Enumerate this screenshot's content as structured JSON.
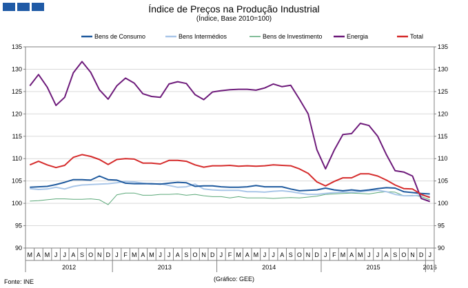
{
  "header": {
    "squares_color": "#1f5aa6"
  },
  "footer": {
    "source": "Fonte: INE",
    "credit": "(Gráfico: GEE)"
  },
  "chart_data": {
    "type": "line",
    "title": "Índice de Preços na Produção Industrial",
    "subtitle": "(Índice, Base 2010=100)",
    "ylim": [
      90,
      135
    ],
    "yticks": [
      90,
      95,
      100,
      105,
      110,
      115,
      120,
      125,
      130,
      135
    ],
    "month_labels": [
      "M",
      "A",
      "M",
      "J",
      "J",
      "A",
      "S",
      "O",
      "N",
      "D",
      "J",
      "F",
      "M",
      "A",
      "M",
      "J",
      "J",
      "A",
      "S",
      "O",
      "N",
      "D",
      "J",
      "F",
      "M",
      "A",
      "M",
      "J",
      "J",
      "A",
      "S",
      "O",
      "N",
      "D",
      "J",
      "F",
      "M",
      "A",
      "M",
      "J",
      "J",
      "A",
      "S",
      "O",
      "N",
      "D",
      "J"
    ],
    "years": [
      {
        "label": "2012",
        "start": 0,
        "count": 10
      },
      {
        "label": "2013",
        "start": 10,
        "count": 12
      },
      {
        "label": "2014",
        "start": 22,
        "count": 12
      },
      {
        "label": "2015",
        "start": 34,
        "count": 12
      },
      {
        "label": "2016",
        "start": 46,
        "count": 1
      }
    ],
    "grid": true,
    "legend_position": "top",
    "series": [
      {
        "name": "Bens de Consumo",
        "color": "#1f5a9e",
        "width": 2,
        "values": [
          103.6,
          103.7,
          103.8,
          104.2,
          104.7,
          105.3,
          105.3,
          105.2,
          106.1,
          105.3,
          105.2,
          104.5,
          104.4,
          104.4,
          104.4,
          104.3,
          104.5,
          104.7,
          104.6,
          103.8,
          103.9,
          103.9,
          103.7,
          103.6,
          103.6,
          103.7,
          104.0,
          103.7,
          103.7,
          103.7,
          103.2,
          102.8,
          102.9,
          103.0,
          103.4,
          103.0,
          102.8,
          103.0,
          102.8,
          103.0,
          103.3,
          103.5,
          103.4,
          102.6,
          102.4,
          102.2,
          102.1
        ]
      },
      {
        "name": "Bens Intermédios",
        "color": "#a9c6e8",
        "width": 2,
        "values": [
          103.3,
          103.1,
          103.2,
          103.6,
          103.2,
          103.8,
          104.1,
          104.2,
          104.3,
          104.4,
          104.6,
          104.9,
          104.8,
          104.5,
          104.3,
          104.4,
          104.0,
          103.6,
          103.7,
          104.3,
          103.2,
          103.0,
          102.9,
          102.9,
          102.9,
          102.6,
          102.6,
          102.5,
          102.7,
          102.8,
          102.6,
          102.3,
          102.0,
          102.0,
          102.2,
          102.4,
          102.5,
          102.5,
          102.6,
          102.8,
          102.9,
          102.6,
          102.0,
          101.7,
          101.7,
          101.8,
          101.5
        ]
      },
      {
        "name": "Bens de Investimento",
        "color": "#5aa878",
        "width": 1,
        "values": [
          100.5,
          100.6,
          100.8,
          101.0,
          101.0,
          100.9,
          100.9,
          101.0,
          100.8,
          99.7,
          101.9,
          102.3,
          102.3,
          101.8,
          101.8,
          102.0,
          102.0,
          102.1,
          101.8,
          102.0,
          101.7,
          101.5,
          101.5,
          101.2,
          101.5,
          101.2,
          101.2,
          101.2,
          101.1,
          101.2,
          101.3,
          101.2,
          101.4,
          101.6,
          102.0,
          102.1,
          102.2,
          102.3,
          102.2,
          102.1,
          102.4,
          102.6,
          102.5,
          101.7,
          101.8,
          101.5,
          100.8
        ]
      },
      {
        "name": "Energia",
        "color": "#6d1a7a",
        "width": 2,
        "values": [
          126.3,
          128.8,
          126.0,
          121.9,
          123.7,
          129.2,
          131.7,
          129.3,
          125.4,
          123.3,
          126.3,
          128.0,
          126.9,
          124.5,
          123.9,
          123.7,
          126.7,
          127.2,
          126.8,
          124.3,
          123.2,
          124.9,
          125.2,
          125.4,
          125.5,
          125.5,
          125.3,
          125.8,
          126.7,
          126.1,
          126.4,
          123.3,
          120.0,
          112.0,
          107.7,
          111.9,
          115.4,
          115.6,
          117.9,
          117.4,
          115.0,
          110.9,
          107.3,
          107.0,
          106.1,
          101.1,
          100.4
        ]
      },
      {
        "name": "Total",
        "color": "#d52b2b",
        "width": 2,
        "values": [
          108.6,
          109.4,
          108.6,
          108.0,
          108.5,
          110.3,
          110.9,
          110.5,
          109.8,
          108.7,
          109.8,
          110.0,
          109.9,
          109.0,
          109.0,
          108.8,
          109.6,
          109.6,
          109.4,
          108.6,
          108.1,
          108.4,
          108.4,
          108.5,
          108.3,
          108.4,
          108.3,
          108.4,
          108.6,
          108.5,
          108.4,
          107.7,
          106.7,
          104.8,
          103.9,
          104.9,
          105.7,
          105.7,
          106.6,
          106.6,
          106.1,
          105.2,
          104.1,
          103.3,
          103.2,
          102.0,
          101.3
        ]
      }
    ]
  }
}
